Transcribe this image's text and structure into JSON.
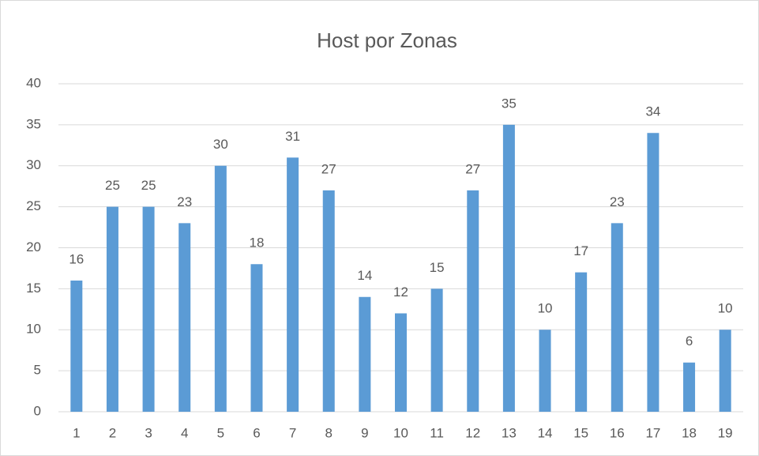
{
  "chart_data": {
    "type": "bar",
    "title": "Host por Zonas",
    "categories": [
      "1",
      "2",
      "3",
      "4",
      "5",
      "6",
      "7",
      "8",
      "9",
      "10",
      "11",
      "12",
      "13",
      "14",
      "15",
      "16",
      "17",
      "18",
      "19"
    ],
    "values": [
      16,
      25,
      25,
      23,
      30,
      18,
      31,
      27,
      14,
      12,
      15,
      27,
      35,
      10,
      17,
      23,
      34,
      6,
      10
    ],
    "color": "#5b9bd5",
    "ylim": [
      0,
      40
    ],
    "yticks": [
      0,
      5,
      10,
      15,
      20,
      25,
      30,
      35,
      40
    ],
    "grid": true,
    "data_labels": true
  }
}
